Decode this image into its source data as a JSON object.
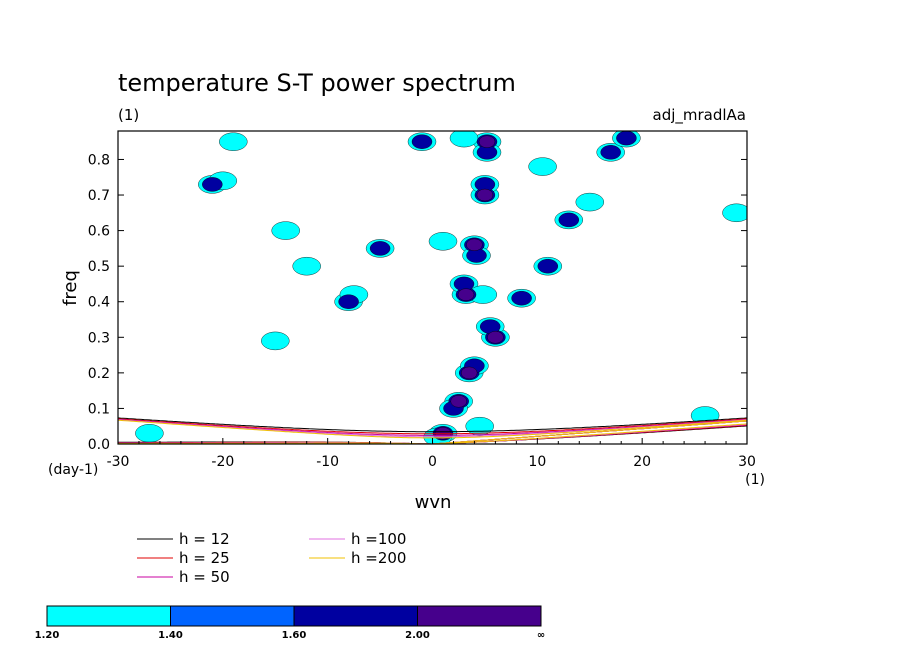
{
  "chart_data": {
    "type": "heatmap",
    "title": "temperature S-T power spectrum",
    "subtitle_left": "(1)",
    "subtitle_right": "adj_mradlAa",
    "xlabel": "wvn",
    "ylabel": "freq",
    "x_unit": "(1)",
    "y_unit": "(day-1)",
    "xlim": [
      -30,
      30
    ],
    "ylim": [
      0.0,
      0.88
    ],
    "x_ticks": [
      "-30",
      "-20",
      "-10",
      "0",
      "10",
      "20",
      "30"
    ],
    "y_ticks": [
      "0.0",
      "0.1",
      "0.2",
      "0.3",
      "0.4",
      "0.5",
      "0.6",
      "0.7",
      "0.8"
    ],
    "grid": false,
    "colorbar": {
      "levels": [
        "1.20",
        "1.40",
        "1.60",
        "2.00",
        "∞"
      ],
      "colors": [
        "#00ffff",
        "#0064ff",
        "#0000a0",
        "#46008c"
      ]
    },
    "dispersion_curves": [
      {
        "name": "h = 12",
        "color": "#000000",
        "h": 12
      },
      {
        "name": "h = 25",
        "color": "#e00000",
        "h": 25
      },
      {
        "name": "h = 50",
        "color": "#c800a0",
        "h": 50
      },
      {
        "name": "h =100",
        "color": "#e070e0",
        "h": 100
      },
      {
        "name": "h =200",
        "color": "#f0c000",
        "h": 200
      }
    ],
    "power_blobs": [
      {
        "x": 5.2,
        "y": 0.85,
        "level": 3
      },
      {
        "x": 5.2,
        "y": 0.82,
        "level": 2
      },
      {
        "x": 5.0,
        "y": 0.7,
        "level": 3
      },
      {
        "x": 5.0,
        "y": 0.73,
        "level": 2
      },
      {
        "x": 4.0,
        "y": 0.56,
        "level": 3
      },
      {
        "x": 4.2,
        "y": 0.53,
        "level": 2
      },
      {
        "x": 3.2,
        "y": 0.42,
        "level": 3
      },
      {
        "x": 3.0,
        "y": 0.45,
        "level": 2
      },
      {
        "x": 4.8,
        "y": 0.42,
        "level": 1
      },
      {
        "x": 6.0,
        "y": 0.3,
        "level": 3
      },
      {
        "x": 5.5,
        "y": 0.33,
        "level": 2
      },
      {
        "x": 3.5,
        "y": 0.2,
        "level": 3
      },
      {
        "x": 4.0,
        "y": 0.22,
        "level": 2
      },
      {
        "x": 2.5,
        "y": 0.12,
        "level": 3
      },
      {
        "x": 2.0,
        "y": 0.1,
        "level": 2
      },
      {
        "x": 1.0,
        "y": 0.03,
        "level": 3
      },
      {
        "x": 0.5,
        "y": 0.02,
        "level": 1
      },
      {
        "x": 8.5,
        "y": 0.41,
        "level": 2
      },
      {
        "x": 11.0,
        "y": 0.5,
        "level": 2
      },
      {
        "x": 13.0,
        "y": 0.63,
        "level": 2
      },
      {
        "x": 15.0,
        "y": 0.68,
        "level": 1
      },
      {
        "x": 17.0,
        "y": 0.82,
        "level": 2
      },
      {
        "x": 18.5,
        "y": 0.86,
        "level": 2
      },
      {
        "x": -8.0,
        "y": 0.4,
        "level": 2
      },
      {
        "x": -7.5,
        "y": 0.42,
        "level": 1
      },
      {
        "x": -12.0,
        "y": 0.5,
        "level": 1
      },
      {
        "x": -14.0,
        "y": 0.6,
        "level": 1
      },
      {
        "x": -5.0,
        "y": 0.55,
        "level": 2
      },
      {
        "x": -21.0,
        "y": 0.73,
        "level": 2
      },
      {
        "x": -20.0,
        "y": 0.74,
        "level": 1
      },
      {
        "x": -1.0,
        "y": 0.85,
        "level": 2
      },
      {
        "x": 3.0,
        "y": 0.86,
        "level": 1
      },
      {
        "x": -19.0,
        "y": 0.85,
        "level": 1
      },
      {
        "x": 10.5,
        "y": 0.78,
        "level": 1
      },
      {
        "x": 29.0,
        "y": 0.65,
        "level": 1
      },
      {
        "x": 26.0,
        "y": 0.08,
        "level": 1
      },
      {
        "x": 4.5,
        "y": 0.05,
        "level": 1
      },
      {
        "x": -27.0,
        "y": 0.03,
        "level": 1
      },
      {
        "x": -15.0,
        "y": 0.29,
        "level": 1
      },
      {
        "x": 1.0,
        "y": 0.57,
        "level": 1
      }
    ]
  }
}
